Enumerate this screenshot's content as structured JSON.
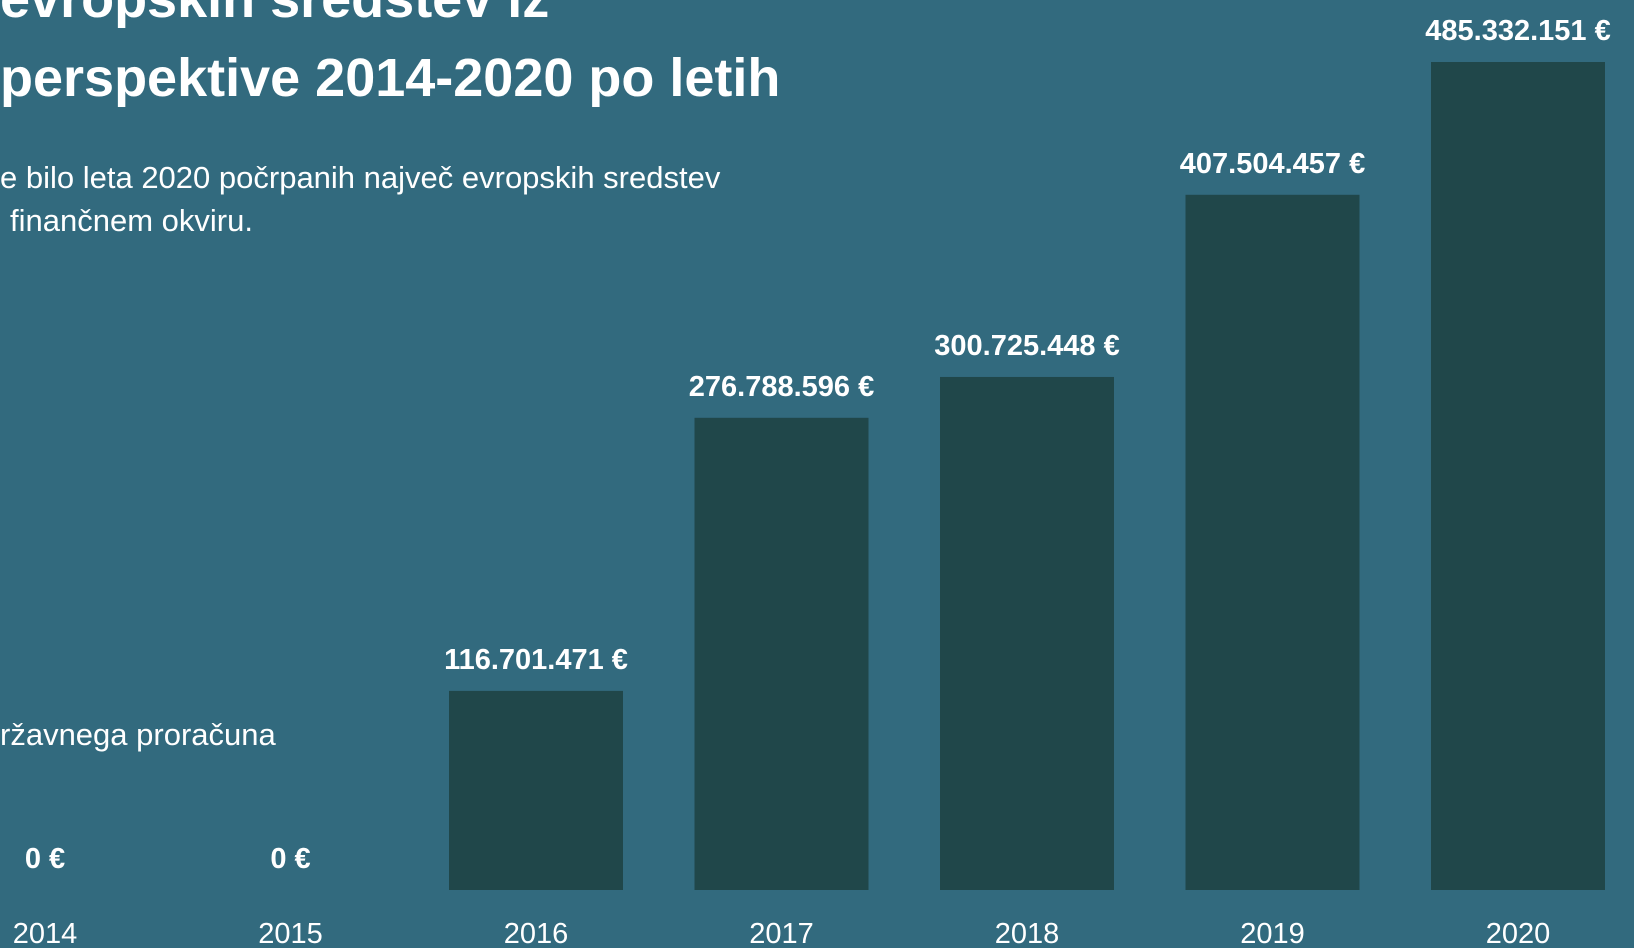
{
  "chart_data": {
    "type": "bar",
    "title_lines": [
      "evropskih sredstev iz",
      "perspektive 2014-2020 po letih"
    ],
    "subtitle_lines": [
      "e bilo leta 2020 počrpanih največ evropskih sredstev",
      "finančnem okviru."
    ],
    "note": "ržavnega proračuna",
    "categories": [
      "2014",
      "2015",
      "2016",
      "2017",
      "2018",
      "2019",
      "2020"
    ],
    "values": [
      0,
      0,
      116701471,
      276788596,
      300725448,
      407504457,
      485332151
    ],
    "value_labels": [
      "0 €",
      "0 €",
      "116.701.471 €",
      "276.788.596 €",
      "300.725.448 €",
      "407.504.457 €",
      "485.332.151 €"
    ],
    "color": "#20474a",
    "ylim": [
      0,
      500000000
    ]
  }
}
